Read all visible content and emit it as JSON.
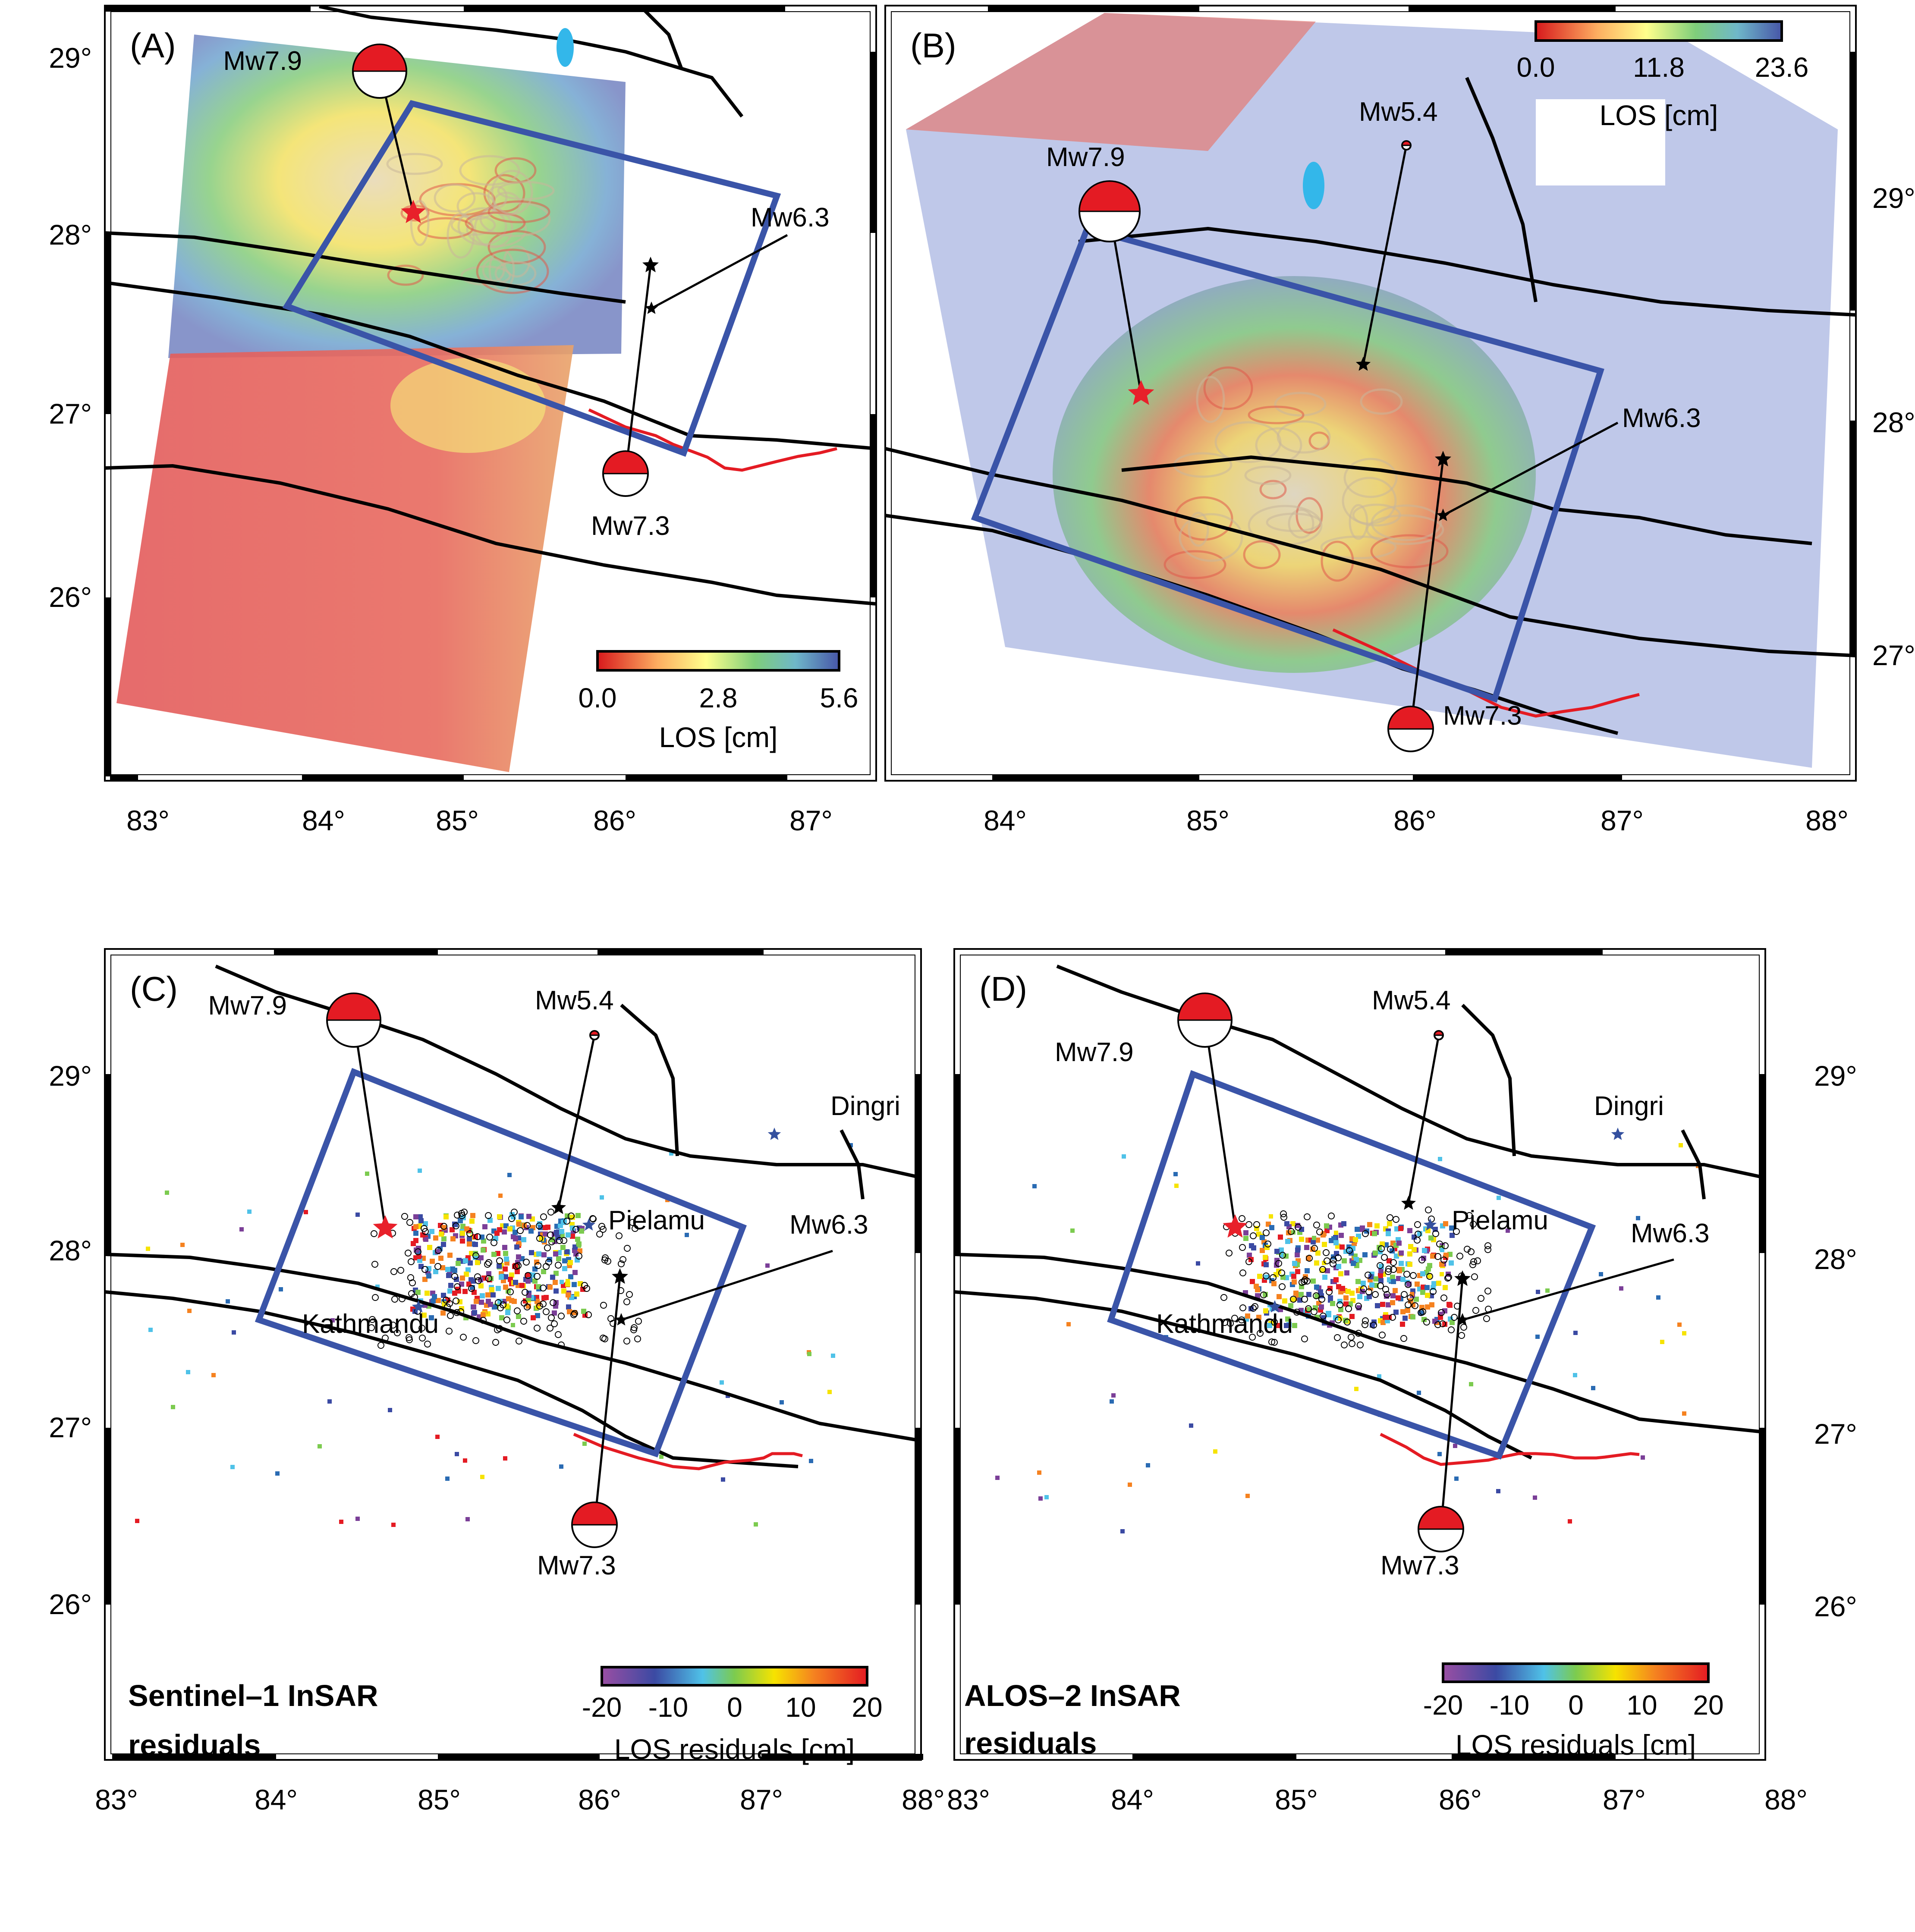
{
  "colors": {
    "frame": "#000000",
    "rupture_box": "#3a54a8",
    "star_major": "#e8202a",
    "star_minor": "#000000",
    "surface_rupture": "#e41b23",
    "lake": "#33b7ea",
    "place_star": "#34509f",
    "beachball": "#e41b23"
  },
  "panels": [
    {
      "id": "A",
      "label": "(A)",
      "lon_ticks": [
        "83°",
        "84°",
        "85°",
        "86°",
        "87°"
      ],
      "lat_ticks_left": [
        "29°",
        "28°",
        "27°",
        "26°"
      ],
      "lat_ticks_right": [],
      "events": [
        {
          "label": "Mw7.9"
        },
        {
          "label": "Mw6.3"
        },
        {
          "label": "Mw7.3"
        }
      ],
      "places": [],
      "colorbar": {
        "ticks": [
          "0.0",
          "2.8",
          "5.6"
        ],
        "title": "LOS [cm]",
        "scheme": "los"
      },
      "caption": []
    },
    {
      "id": "B",
      "label": "(B)",
      "lon_ticks": [
        "84°",
        "85°",
        "86°",
        "87°",
        "88°"
      ],
      "lat_ticks_left": [],
      "lat_ticks_right": [
        "29°",
        "28°",
        "27°"
      ],
      "events": [
        {
          "label": "Mw7.9"
        },
        {
          "label": "Mw5.4"
        },
        {
          "label": "Mw6.3"
        },
        {
          "label": "Mw7.3"
        }
      ],
      "places": [],
      "colorbar": {
        "ticks": [
          "0.0",
          "11.8",
          "23.6"
        ],
        "title": "LOS [cm]",
        "scheme": "los"
      },
      "caption": []
    },
    {
      "id": "C",
      "label": "(C)",
      "lon_ticks": [
        "83°",
        "84°",
        "85°",
        "86°",
        "87°",
        "88°"
      ],
      "lat_ticks_left": [
        "29°",
        "28°",
        "27°",
        "26°"
      ],
      "lat_ticks_right": [],
      "events": [
        {
          "label": "Mw7.9"
        },
        {
          "label": "Mw5.4"
        },
        {
          "label": "Mw6.3"
        },
        {
          "label": "Mw7.3"
        }
      ],
      "places": [
        {
          "label": "Dingri"
        },
        {
          "label": "Pielamu"
        },
        {
          "label": "Kathmandu"
        }
      ],
      "colorbar": {
        "ticks": [
          "-20",
          "-10",
          "0",
          "10",
          "20"
        ],
        "title": "LOS residuals [cm]",
        "scheme": "residual"
      },
      "caption": [
        "Sentinel–1 InSAR",
        "residuals"
      ]
    },
    {
      "id": "D",
      "label": "(D)",
      "lon_ticks": [
        "83°",
        "84°",
        "85°",
        "86°",
        "87°",
        "88°"
      ],
      "lat_ticks_left": [],
      "lat_ticks_right": [
        "29°",
        "28°",
        "27°",
        "26°"
      ],
      "events": [
        {
          "label": "Mw7.9"
        },
        {
          "label": "Mw5.4"
        },
        {
          "label": "Mw6.3"
        },
        {
          "label": "Mw7.3"
        }
      ],
      "places": [
        {
          "label": "Dingri"
        },
        {
          "label": "Pielamu"
        },
        {
          "label": "Kathmandu"
        }
      ],
      "colorbar": {
        "ticks": [
          "-20",
          "-10",
          "0",
          "10",
          "20"
        ],
        "title": "LOS residuals [cm]",
        "scheme": "residual"
      },
      "caption": [
        "ALOS–2 InSAR",
        "residuals"
      ]
    }
  ]
}
